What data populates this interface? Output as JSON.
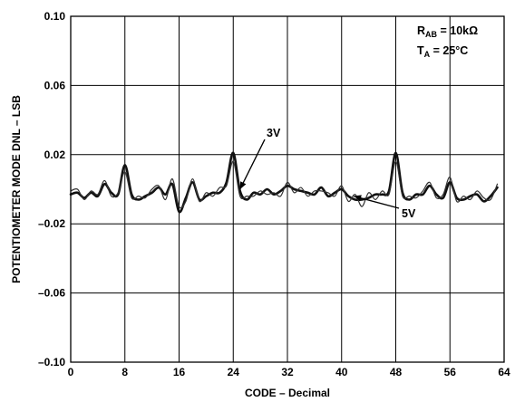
{
  "chart_data": {
    "type": "line",
    "xlabel": "CODE – Decimal",
    "ylabel": "POTENTIOMETER MODE DNL – LSB",
    "xlim": [
      0,
      64
    ],
    "ylim": [
      -0.1,
      0.1
    ],
    "x_ticks": [
      "0",
      "8",
      "16",
      "24",
      "32",
      "40",
      "48",
      "56",
      "64"
    ],
    "y_ticks": [
      "–0.10",
      "–0.06",
      "–0.02",
      "0.02",
      "0.06",
      "0.10"
    ],
    "grid": true,
    "conditions": {
      "line1_main": "R",
      "line1_sub": "AB",
      "line1_rest": " = 10kΩ",
      "line2_main": "T",
      "line2_sub": "A",
      "line2_rest": " = 25°C"
    },
    "series": [
      {
        "name": "3V",
        "x": [
          0,
          1,
          2,
          3,
          4,
          5,
          6,
          7,
          8,
          9,
          10,
          11,
          12,
          13,
          14,
          15,
          16,
          17,
          18,
          19,
          20,
          21,
          22,
          23,
          24,
          25,
          26,
          27,
          28,
          29,
          30,
          31,
          32,
          33,
          34,
          35,
          36,
          37,
          38,
          39,
          40,
          41,
          42,
          43,
          44,
          45,
          46,
          47,
          48,
          49,
          50,
          51,
          52,
          53,
          54,
          55,
          56,
          57,
          58,
          59,
          60,
          61,
          62,
          63
        ],
        "y": [
          -0.003,
          -0.002,
          -0.005,
          -0.002,
          -0.004,
          0.003,
          -0.002,
          -0.003,
          0.014,
          -0.003,
          -0.006,
          -0.004,
          -0.002,
          0.001,
          -0.003,
          0.003,
          -0.013,
          -0.005,
          0.004,
          -0.006,
          -0.004,
          -0.002,
          -0.002,
          0.004,
          0.021,
          -0.001,
          -0.006,
          -0.002,
          -0.003,
          0.0,
          -0.003,
          -0.001,
          0.002,
          0.0,
          -0.001,
          -0.002,
          -0.003,
          0.001,
          -0.004,
          -0.002,
          0.0,
          -0.004,
          -0.006,
          -0.006,
          -0.005,
          -0.003,
          -0.003,
          -0.001,
          0.021,
          -0.002,
          -0.006,
          -0.003,
          -0.003,
          0.002,
          -0.003,
          -0.005,
          0.004,
          -0.005,
          -0.006,
          -0.004,
          -0.003,
          -0.007,
          -0.004,
          0.001
        ]
      },
      {
        "name": "5V",
        "x": [
          0,
          1,
          2,
          3,
          4,
          5,
          6,
          7,
          8,
          9,
          10,
          11,
          12,
          13,
          14,
          15,
          16,
          17,
          18,
          19,
          20,
          21,
          22,
          23,
          24,
          25,
          26,
          27,
          28,
          29,
          30,
          31,
          32,
          33,
          34,
          35,
          36,
          37,
          38,
          39,
          40,
          41,
          42,
          43,
          44,
          45,
          46,
          47,
          48,
          49,
          50,
          51,
          52,
          53,
          54,
          55,
          56,
          57,
          58,
          59,
          60,
          61,
          62,
          63
        ],
        "y": [
          -0.001,
          0.0,
          -0.006,
          -0.001,
          -0.003,
          0.005,
          -0.004,
          -0.002,
          0.01,
          -0.005,
          -0.004,
          -0.005,
          0.0,
          0.002,
          -0.006,
          0.006,
          -0.01,
          -0.007,
          0.006,
          -0.007,
          -0.002,
          -0.004,
          0.001,
          0.002,
          0.016,
          -0.004,
          -0.004,
          -0.004,
          -0.001,
          -0.003,
          -0.002,
          -0.004,
          0.004,
          -0.002,
          0.001,
          -0.004,
          -0.001,
          -0.001,
          -0.002,
          -0.004,
          0.002,
          -0.007,
          -0.003,
          -0.01,
          -0.002,
          -0.006,
          -0.001,
          -0.003,
          0.016,
          -0.004,
          -0.004,
          -0.005,
          -0.001,
          0.004,
          -0.005,
          -0.003,
          0.007,
          -0.007,
          -0.004,
          -0.006,
          -0.001,
          -0.005,
          -0.006,
          0.003
        ]
      }
    ],
    "annotations": [
      {
        "text": "3V",
        "series": "3V"
      },
      {
        "text": "5V",
        "series": "5V"
      }
    ]
  }
}
